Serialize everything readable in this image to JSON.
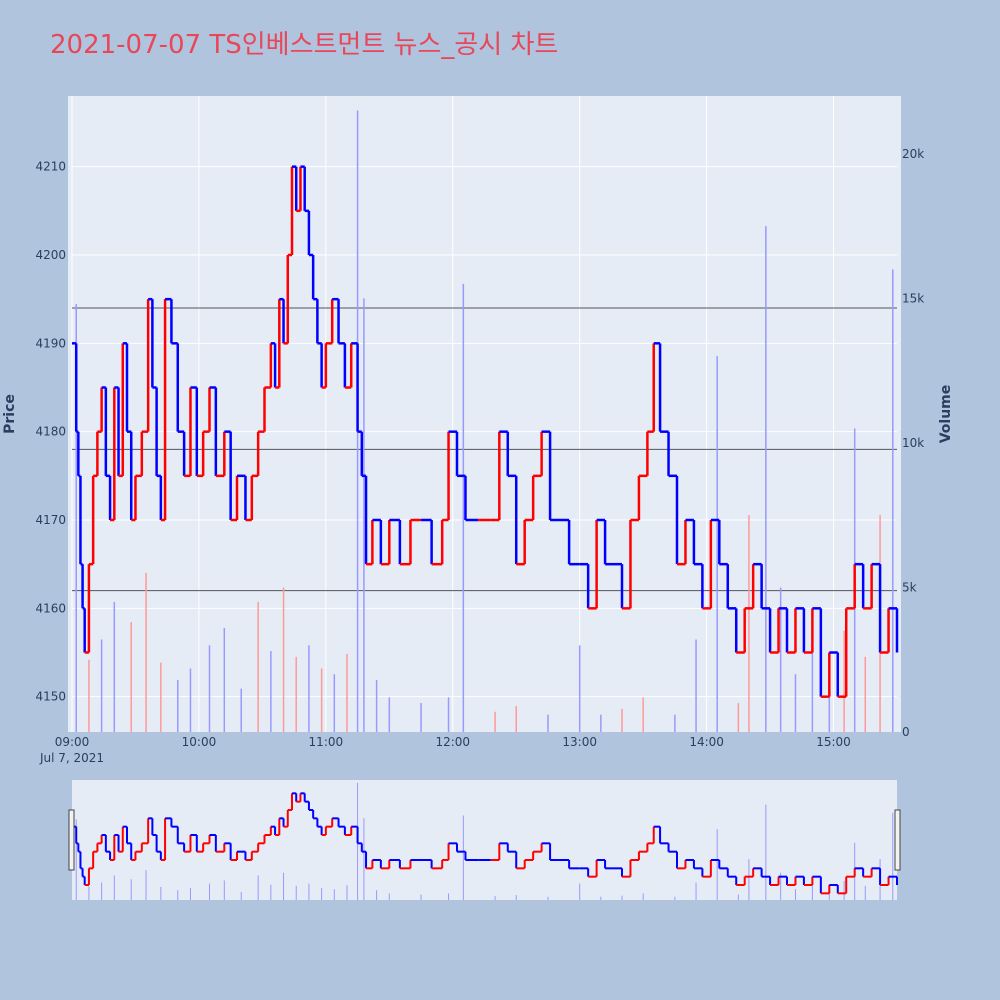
{
  "colors": {
    "background": "#b0c4de",
    "plot_bg": "#e5ecf6",
    "up": "#ff0000",
    "down": "#0000ff",
    "title": "#e8475a",
    "volume_up": "#ff9999",
    "volume_down": "#9999ff"
  },
  "chart_data": {
    "type": "line",
    "title": "2021-07-07 TS인베스트먼트 뉴스_공시 차트",
    "ylabel": "Price",
    "y2label": "Volume",
    "x_axis": {
      "ticks": [
        "09:00",
        "10:00",
        "11:00",
        "12:00",
        "13:00",
        "14:00",
        "15:00"
      ],
      "date_label": "Jul 7, 2021",
      "range": [
        "09:00",
        "15:30"
      ]
    },
    "y_axis": {
      "ticks": [
        "4150",
        "4160",
        "4170",
        "4180",
        "4190",
        "4200",
        "4210"
      ],
      "range": [
        4146,
        4218
      ]
    },
    "y2_axis": {
      "ticks": [
        "0",
        "5k",
        "10k",
        "15k",
        "20k"
      ],
      "range": [
        0,
        22000
      ]
    },
    "grid": true,
    "rangeslider": true,
    "horizontal_lines": [
      4194,
      4178,
      4162
    ],
    "price_series": {
      "name": "Price",
      "points": [
        [
          "09:00",
          4190
        ],
        [
          "09:02",
          4180
        ],
        [
          "09:03",
          4175
        ],
        [
          "09:04",
          4165
        ],
        [
          "09:05",
          4160
        ],
        [
          "09:06",
          4155
        ],
        [
          "09:08",
          4165
        ],
        [
          "09:10",
          4175
        ],
        [
          "09:12",
          4180
        ],
        [
          "09:14",
          4185
        ],
        [
          "09:16",
          4175
        ],
        [
          "09:18",
          4170
        ],
        [
          "09:20",
          4185
        ],
        [
          "09:22",
          4175
        ],
        [
          "09:24",
          4190
        ],
        [
          "09:26",
          4180
        ],
        [
          "09:28",
          4170
        ],
        [
          "09:30",
          4175
        ],
        [
          "09:33",
          4180
        ],
        [
          "09:36",
          4195
        ],
        [
          "09:38",
          4185
        ],
        [
          "09:40",
          4175
        ],
        [
          "09:42",
          4170
        ],
        [
          "09:44",
          4195
        ],
        [
          "09:47",
          4190
        ],
        [
          "09:50",
          4180
        ],
        [
          "09:53",
          4175
        ],
        [
          "09:56",
          4185
        ],
        [
          "09:59",
          4175
        ],
        [
          "10:02",
          4180
        ],
        [
          "10:05",
          4185
        ],
        [
          "10:08",
          4175
        ],
        [
          "10:12",
          4180
        ],
        [
          "10:15",
          4170
        ],
        [
          "10:18",
          4175
        ],
        [
          "10:22",
          4170
        ],
        [
          "10:25",
          4175
        ],
        [
          "10:28",
          4180
        ],
        [
          "10:31",
          4185
        ],
        [
          "10:34",
          4190
        ],
        [
          "10:36",
          4185
        ],
        [
          "10:38",
          4195
        ],
        [
          "10:40",
          4190
        ],
        [
          "10:42",
          4200
        ],
        [
          "10:44",
          4210
        ],
        [
          "10:46",
          4205
        ],
        [
          "10:48",
          4210
        ],
        [
          "10:50",
          4205
        ],
        [
          "10:52",
          4200
        ],
        [
          "10:54",
          4195
        ],
        [
          "10:56",
          4190
        ],
        [
          "10:58",
          4185
        ],
        [
          "11:00",
          4190
        ],
        [
          "11:03",
          4195
        ],
        [
          "11:06",
          4190
        ],
        [
          "11:09",
          4185
        ],
        [
          "11:12",
          4190
        ],
        [
          "11:15",
          4180
        ],
        [
          "11:17",
          4175
        ],
        [
          "11:19",
          4165
        ],
        [
          "11:22",
          4170
        ],
        [
          "11:26",
          4165
        ],
        [
          "11:30",
          4170
        ],
        [
          "11:35",
          4165
        ],
        [
          "11:40",
          4170
        ],
        [
          "11:45",
          4170
        ],
        [
          "11:50",
          4165
        ],
        [
          "11:55",
          4170
        ],
        [
          "11:58",
          4180
        ],
        [
          "12:02",
          4175
        ],
        [
          "12:06",
          4170
        ],
        [
          "12:12",
          4170
        ],
        [
          "12:18",
          4170
        ],
        [
          "12:22",
          4180
        ],
        [
          "12:26",
          4175
        ],
        [
          "12:30",
          4165
        ],
        [
          "12:34",
          4170
        ],
        [
          "12:38",
          4175
        ],
        [
          "12:42",
          4180
        ],
        [
          "12:46",
          4170
        ],
        [
          "12:50",
          4170
        ],
        [
          "12:55",
          4165
        ],
        [
          "13:00",
          4165
        ],
        [
          "13:04",
          4160
        ],
        [
          "13:08",
          4170
        ],
        [
          "13:12",
          4165
        ],
        [
          "13:16",
          4165
        ],
        [
          "13:20",
          4160
        ],
        [
          "13:24",
          4170
        ],
        [
          "13:28",
          4175
        ],
        [
          "13:32",
          4180
        ],
        [
          "13:35",
          4190
        ],
        [
          "13:38",
          4180
        ],
        [
          "13:42",
          4175
        ],
        [
          "13:46",
          4165
        ],
        [
          "13:50",
          4170
        ],
        [
          "13:54",
          4165
        ],
        [
          "13:58",
          4160
        ],
        [
          "14:02",
          4170
        ],
        [
          "14:06",
          4165
        ],
        [
          "14:10",
          4160
        ],
        [
          "14:14",
          4155
        ],
        [
          "14:18",
          4160
        ],
        [
          "14:22",
          4165
        ],
        [
          "14:26",
          4160
        ],
        [
          "14:30",
          4155
        ],
        [
          "14:34",
          4160
        ],
        [
          "14:38",
          4155
        ],
        [
          "14:42",
          4160
        ],
        [
          "14:46",
          4155
        ],
        [
          "14:50",
          4160
        ],
        [
          "14:54",
          4150
        ],
        [
          "14:58",
          4155
        ],
        [
          "15:02",
          4150
        ],
        [
          "15:06",
          4160
        ],
        [
          "15:10",
          4165
        ],
        [
          "15:14",
          4160
        ],
        [
          "15:18",
          4165
        ],
        [
          "15:22",
          4155
        ],
        [
          "15:26",
          4160
        ],
        [
          "15:30",
          4155
        ]
      ]
    },
    "volume_series": {
      "name": "Volume",
      "bars": [
        [
          "09:02",
          14800
        ],
        [
          "09:08",
          2500
        ],
        [
          "09:14",
          3200
        ],
        [
          "09:20",
          4500
        ],
        [
          "09:28",
          3800
        ],
        [
          "09:35",
          5500
        ],
        [
          "09:42",
          2400
        ],
        [
          "09:50",
          1800
        ],
        [
          "09:56",
          2200
        ],
        [
          "10:05",
          3000
        ],
        [
          "10:12",
          3600
        ],
        [
          "10:20",
          1500
        ],
        [
          "10:28",
          4500
        ],
        [
          "10:34",
          2800
        ],
        [
          "10:40",
          5000
        ],
        [
          "10:46",
          2600
        ],
        [
          "10:52",
          3000
        ],
        [
          "10:58",
          2200
        ],
        [
          "11:04",
          2000
        ],
        [
          "11:10",
          2700
        ],
        [
          "11:15",
          21500
        ],
        [
          "11:18",
          15000
        ],
        [
          "11:24",
          1800
        ],
        [
          "11:30",
          1200
        ],
        [
          "11:45",
          1000
        ],
        [
          "11:58",
          1200
        ],
        [
          "12:05",
          15500
        ],
        [
          "12:20",
          700
        ],
        [
          "12:30",
          900
        ],
        [
          "12:45",
          600
        ],
        [
          "13:00",
          3000
        ],
        [
          "13:10",
          600
        ],
        [
          "13:20",
          800
        ],
        [
          "13:30",
          1200
        ],
        [
          "13:45",
          600
        ],
        [
          "13:55",
          3200
        ],
        [
          "14:05",
          13000
        ],
        [
          "14:15",
          1000
        ],
        [
          "14:20",
          7500
        ],
        [
          "14:28",
          17500
        ],
        [
          "14:35",
          5000
        ],
        [
          "14:42",
          2000
        ],
        [
          "14:50",
          4000
        ],
        [
          "14:58",
          2300
        ],
        [
          "15:05",
          3500
        ],
        [
          "15:10",
          10500
        ],
        [
          "15:15",
          2600
        ],
        [
          "15:22",
          7500
        ],
        [
          "15:28",
          16000
        ]
      ]
    }
  }
}
